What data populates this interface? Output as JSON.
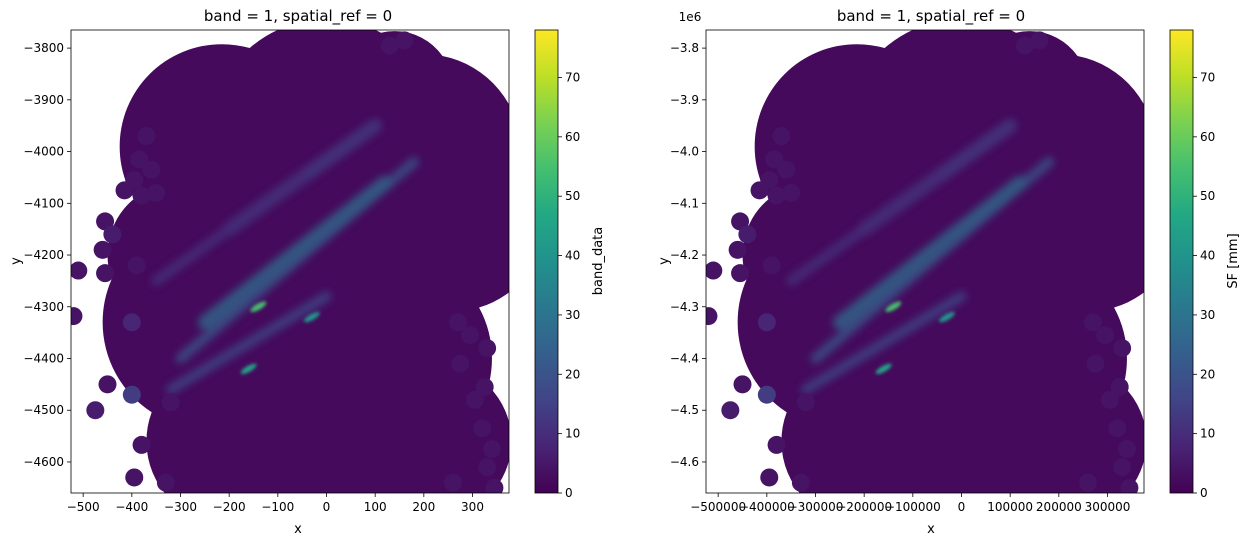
{
  "chart_data": [
    {
      "type": "heatmap",
      "title": "band = 1, spatial_ref = 0",
      "xlabel": "x",
      "ylabel": "y",
      "xlim": [
        -525,
        375
      ],
      "ylim": [
        -4660,
        -3765
      ],
      "xticks": [
        -500,
        -400,
        -300,
        -200,
        -100,
        0,
        100,
        200,
        300
      ],
      "xtick_labels": [
        "−500",
        "−400",
        "−300",
        "−200",
        "−100",
        "0",
        "100",
        "200",
        "300"
      ],
      "yticks": [
        -4600,
        -4500,
        -4400,
        -4300,
        -4200,
        -4100,
        -4000,
        -3900,
        -3800
      ],
      "ytick_labels": [
        "−4600",
        "−4500",
        "−4400",
        "−4300",
        "−4200",
        "−4100",
        "−4000",
        "−3900",
        "−3800"
      ],
      "offset_text": "",
      "colorbar": {
        "label": "band_data",
        "cmap": "viridis",
        "range": [
          0,
          78
        ],
        "ticks": [
          0,
          10,
          20,
          30,
          40,
          50,
          60,
          70
        ],
        "tick_labels": [
          "0",
          "10",
          "20",
          "30",
          "40",
          "50",
          "60",
          "70"
        ]
      },
      "field": {
        "background": 2,
        "bands": [
          {
            "from": [
              -300,
              -4400
            ],
            "to": [
              180,
              -4020
            ],
            "value": 22
          },
          {
            "from": [
              -250,
              -4330
            ],
            "to": [
              120,
              -4060
            ],
            "value": 28
          },
          {
            "from": [
              -320,
              -4460
            ],
            "to": [
              0,
              -4280
            ],
            "value": 18
          },
          {
            "from": [
              -200,
              -4150
            ],
            "to": [
              100,
              -3950
            ],
            "value": 14
          },
          {
            "from": [
              -350,
              -4250
            ],
            "to": [
              -50,
              -4050
            ],
            "value": 12
          }
        ],
        "hotspots": [
          {
            "x": -140,
            "y": -4300,
            "value": 55
          },
          {
            "x": -160,
            "y": -4420,
            "value": 45
          },
          {
            "x": -30,
            "y": -4320,
            "value": 40
          }
        ]
      }
    },
    {
      "type": "heatmap",
      "title": "band = 1, spatial_ref = 0",
      "xlabel": "x",
      "ylabel": "y",
      "xlim": [
        -525000,
        375000
      ],
      "ylim": [
        -4660000,
        -3765000
      ],
      "xticks": [
        -500000,
        -400000,
        -300000,
        -200000,
        -100000,
        0,
        100000,
        200000,
        300000
      ],
      "xtick_labels": [
        "−500000",
        "−400000",
        "−300000",
        "−200000",
        "−100000",
        "0",
        "100000",
        "200000",
        "300000"
      ],
      "yticks": [
        -4600000,
        -4500000,
        -4400000,
        -4300000,
        -4200000,
        -4100000,
        -4000000,
        -3900000,
        -3800000
      ],
      "ytick_labels": [
        "−4.6",
        "−4.5",
        "−4.4",
        "−4.3",
        "−4.2",
        "−4.1",
        "−4.0",
        "−3.9",
        "−3.8"
      ],
      "offset_text": "1e6",
      "colorbar": {
        "label": "SF [mm]",
        "cmap": "viridis",
        "range": [
          0,
          78
        ],
        "ticks": [
          0,
          10,
          20,
          30,
          40,
          50,
          60,
          70
        ],
        "tick_labels": [
          "0",
          "10",
          "20",
          "30",
          "40",
          "50",
          "60",
          "70"
        ]
      }
    }
  ],
  "radar_coverage": {
    "large_discs": [
      {
        "x": -215,
        "y": -3990,
        "r": 210
      },
      {
        "x": 0,
        "y": -3970,
        "r": 240
      },
      {
        "x": 200,
        "y": -4000,
        "r": 200
      },
      {
        "x": 260,
        "y": -4130,
        "r": 190
      },
      {
        "x": -240,
        "y": -4330,
        "r": 220
      },
      {
        "x": -120,
        "y": -4230,
        "r": 250
      },
      {
        "x": 60,
        "y": -4250,
        "r": 230
      },
      {
        "x": 120,
        "y": -4400,
        "r": 220
      },
      {
        "x": -80,
        "y": -4480,
        "r": 230
      },
      {
        "x": -200,
        "y": -4560,
        "r": 170
      },
      {
        "x": 40,
        "y": -4560,
        "r": 230
      },
      {
        "x": 220,
        "y": -4560,
        "r": 160
      },
      {
        "x": -20,
        "y": -4100,
        "r": 230
      },
      {
        "x": 140,
        "y": -3880,
        "r": 120
      },
      {
        "x": -300,
        "y": -4200,
        "r": 150
      }
    ],
    "small_discs": [
      {
        "x": -370,
        "y": -3970,
        "r": 9,
        "value": 4
      },
      {
        "x": -385,
        "y": -4015,
        "r": 9,
        "value": 4
      },
      {
        "x": -360,
        "y": -4035,
        "r": 9,
        "value": 4
      },
      {
        "x": -395,
        "y": -4055,
        "r": 9,
        "value": 4
      },
      {
        "x": -415,
        "y": -4075,
        "r": 9,
        "value": 4
      },
      {
        "x": -380,
        "y": -4085,
        "r": 9,
        "value": 4
      },
      {
        "x": -350,
        "y": -4080,
        "r": 9,
        "value": 4
      },
      {
        "x": -455,
        "y": -4135,
        "r": 9,
        "value": 4
      },
      {
        "x": -440,
        "y": -4160,
        "r": 9,
        "value": 6
      },
      {
        "x": -460,
        "y": -4190,
        "r": 9,
        "value": 4
      },
      {
        "x": -390,
        "y": -4220,
        "r": 9,
        "value": 4
      },
      {
        "x": -455,
        "y": -4235,
        "r": 9,
        "value": 4
      },
      {
        "x": -510,
        "y": -4230,
        "r": 9,
        "value": 4
      },
      {
        "x": -520,
        "y": -4318,
        "r": 9,
        "value": 4
      },
      {
        "x": -400,
        "y": -4330,
        "r": 9,
        "value": 8
      },
      {
        "x": -450,
        "y": -4450,
        "r": 9,
        "value": 4
      },
      {
        "x": -400,
        "y": -4470,
        "r": 9,
        "value": 14
      },
      {
        "x": -475,
        "y": -4500,
        "r": 9,
        "value": 6
      },
      {
        "x": -320,
        "y": -4485,
        "r": 9,
        "value": 4
      },
      {
        "x": -380,
        "y": -4567,
        "r": 9,
        "value": 4
      },
      {
        "x": -395,
        "y": -4630,
        "r": 9,
        "value": 4
      },
      {
        "x": -330,
        "y": -4640,
        "r": 9,
        "value": 4
      },
      {
        "x": 270,
        "y": -4330,
        "r": 9,
        "value": 4
      },
      {
        "x": 295,
        "y": -4355,
        "r": 9,
        "value": 4
      },
      {
        "x": 330,
        "y": -4380,
        "r": 9,
        "value": 4
      },
      {
        "x": 275,
        "y": -4410,
        "r": 9,
        "value": 4
      },
      {
        "x": 325,
        "y": -4455,
        "r": 9,
        "value": 4
      },
      {
        "x": 305,
        "y": -4480,
        "r": 9,
        "value": 4
      },
      {
        "x": 320,
        "y": -4535,
        "r": 9,
        "value": 4
      },
      {
        "x": 340,
        "y": -4575,
        "r": 9,
        "value": 4
      },
      {
        "x": 330,
        "y": -4610,
        "r": 9,
        "value": 4
      },
      {
        "x": 345,
        "y": -4650,
        "r": 9,
        "value": 4
      },
      {
        "x": 260,
        "y": -4640,
        "r": 9,
        "value": 4
      },
      {
        "x": 130,
        "y": -3795,
        "r": 9,
        "value": 4
      },
      {
        "x": 160,
        "y": -3785,
        "r": 9,
        "value": 4
      }
    ]
  }
}
